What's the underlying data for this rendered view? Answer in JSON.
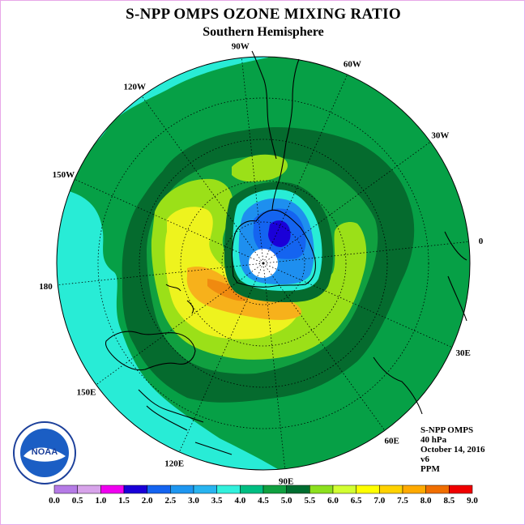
{
  "title": "S-NPP OMPS OZONE MIXING RATIO",
  "subtitle": "Southern Hemisphere",
  "longitude_labels": [
    "90W",
    "60W",
    "30W",
    "0",
    "30E",
    "60E",
    "90E",
    "120E",
    "150E",
    "180",
    "150W",
    "120W"
  ],
  "info": {
    "product": "S-NPP OMPS",
    "level": "40 hPa",
    "date": "October 14, 2016",
    "version": "v6",
    "units": "PPM"
  },
  "logo_text": "NOAA",
  "colorbar": {
    "ticks": [
      "0.0",
      "0.5",
      "1.0",
      "1.5",
      "2.0",
      "2.5",
      "3.0",
      "3.5",
      "4.0",
      "4.5",
      "5.0",
      "5.5",
      "6.0",
      "6.5",
      "7.0",
      "7.5",
      "8.0",
      "8.5",
      "9.0"
    ],
    "colors": [
      "#b57be6",
      "#d7a3ea",
      "#f000f0",
      "#1a00d8",
      "#1464f0",
      "#1e96f0",
      "#28b4f0",
      "#32f0dc",
      "#00be82",
      "#10a040",
      "#006e30",
      "#8ce01e",
      "#d2ff32",
      "#ffff00",
      "#ffd200",
      "#ffaa00",
      "#f06e00",
      "#f00000",
      "#8c5032"
    ]
  },
  "colors": {
    "ring_outer": "#06a046",
    "ring_dark": "#056b2e",
    "cyan": "#28ecd6",
    "yellow_green": "#9be018",
    "yellow": "#eef31e",
    "orange": "#f7b11b",
    "ozone_hole_blue": "#1e8fef",
    "deep_blue": "#1a00d8"
  }
}
